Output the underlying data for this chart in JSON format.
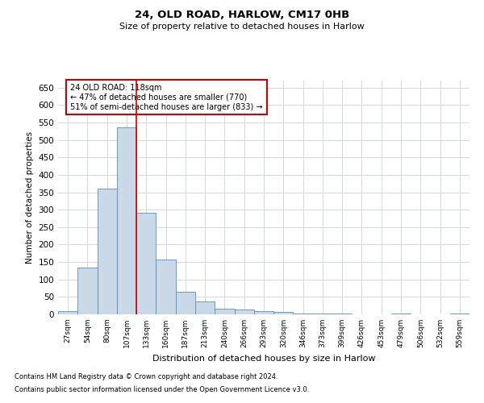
{
  "title1": "24, OLD ROAD, HARLOW, CM17 0HB",
  "title2": "Size of property relative to detached houses in Harlow",
  "xlabel": "Distribution of detached houses by size in Harlow",
  "ylabel": "Number of detached properties",
  "annotation_line1": "24 OLD ROAD: 118sqm",
  "annotation_line2": "← 47% of detached houses are smaller (770)",
  "annotation_line3": "51% of semi-detached houses are larger (833) →",
  "footnote1": "Contains HM Land Registry data © Crown copyright and database right 2024.",
  "footnote2": "Contains public sector information licensed under the Open Government Licence v3.0.",
  "bar_color": "#c9d9e8",
  "bar_edgecolor": "#5b8db8",
  "redline_color": "#cc0000",
  "annotation_box_edgecolor": "#cc0000",
  "background_color": "#ffffff",
  "grid_color": "#d0d8e8",
  "categories": [
    "27sqm",
    "54sqm",
    "80sqm",
    "107sqm",
    "133sqm",
    "160sqm",
    "187sqm",
    "213sqm",
    "240sqm",
    "266sqm",
    "293sqm",
    "320sqm",
    "346sqm",
    "373sqm",
    "399sqm",
    "426sqm",
    "453sqm",
    "479sqm",
    "506sqm",
    "532sqm",
    "559sqm"
  ],
  "values": [
    10,
    135,
    360,
    535,
    290,
    157,
    65,
    38,
    17,
    15,
    10,
    8,
    3,
    2,
    2,
    1,
    0,
    3,
    0,
    1,
    3
  ],
  "redline_x": 3.5,
  "ylim": [
    0,
    670
  ],
  "yticks": [
    0,
    50,
    100,
    150,
    200,
    250,
    300,
    350,
    400,
    450,
    500,
    550,
    600,
    650
  ]
}
